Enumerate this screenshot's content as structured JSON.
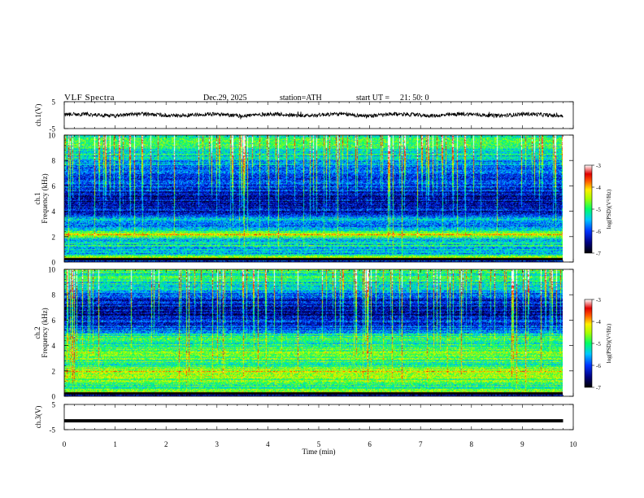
{
  "header": {
    "title": "VLF  Spectra",
    "date": "Dec.29, 2025",
    "station": "station=ATH",
    "start_label": "start  UT  =",
    "start_value": "21: 50: 0"
  },
  "chart_data": [
    {
      "type": "line",
      "name": "ch1-waveform",
      "ylabel": "ch.1(V)",
      "yticks": [
        "5",
        "-5"
      ],
      "ylim": [
        -5,
        5
      ],
      "xlim": [
        0,
        10
      ],
      "baseline": 0,
      "data_extent": [
        0,
        9.8
      ],
      "description_values": {
        "mean": 0.1,
        "noise_amplitude": 0.7
      }
    },
    {
      "type": "heatmap",
      "name": "ch1-spectrogram",
      "ylabel": "Frequency (kHz)",
      "channel_label": "ch.1",
      "yticks": [
        "0",
        "2",
        "4",
        "6",
        "8",
        "10"
      ],
      "ylim": [
        0,
        10
      ],
      "xlim": [
        0,
        9.8
      ],
      "colorbar": {
        "label": "log(PSD)(V²/Hz)",
        "ticks": [
          "-3",
          "-4",
          "-5",
          "-6",
          "-7"
        ],
        "range": [
          -7,
          -3
        ]
      },
      "profile": [
        {
          "f": 0.0,
          "v": -7.0
        },
        {
          "f": 0.3,
          "v": -4.6
        },
        {
          "f": 0.8,
          "v": -5.6
        },
        {
          "f": 1.3,
          "v": -5.2
        },
        {
          "f": 1.8,
          "v": -5.6
        },
        {
          "f": 2.2,
          "v": -4.1
        },
        {
          "f": 2.8,
          "v": -6.0
        },
        {
          "f": 3.4,
          "v": -5.4
        },
        {
          "f": 4.0,
          "v": -6.3
        },
        {
          "f": 5.0,
          "v": -6.4
        },
        {
          "f": 6.2,
          "v": -6.0
        },
        {
          "f": 7.2,
          "v": -5.9
        },
        {
          "f": 8.3,
          "v": -5.3
        },
        {
          "f": 9.2,
          "v": -5.0
        },
        {
          "f": 10.0,
          "v": -5.0
        }
      ]
    },
    {
      "type": "heatmap",
      "name": "ch2-spectrogram",
      "ylabel": "Frequency (kHz)",
      "channel_label": "ch.2",
      "yticks": [
        "0",
        "2",
        "4",
        "6",
        "8",
        "10"
      ],
      "ylim": [
        0,
        10
      ],
      "xlim": [
        0,
        9.8
      ],
      "colorbar": {
        "label": "log(PSD)(V²/Hz)",
        "ticks": [
          "-3",
          "-4",
          "-5",
          "-6",
          "-7"
        ],
        "range": [
          -7,
          -3
        ]
      },
      "profile": [
        {
          "f": 0.0,
          "v": -7.0
        },
        {
          "f": 0.3,
          "v": -4.6
        },
        {
          "f": 1.0,
          "v": -5.0
        },
        {
          "f": 1.9,
          "v": -4.2
        },
        {
          "f": 2.5,
          "v": -5.0
        },
        {
          "f": 3.3,
          "v": -4.6
        },
        {
          "f": 4.0,
          "v": -5.2
        },
        {
          "f": 4.6,
          "v": -4.8
        },
        {
          "f": 5.3,
          "v": -5.9
        },
        {
          "f": 6.5,
          "v": -6.5
        },
        {
          "f": 7.5,
          "v": -6.2
        },
        {
          "f": 8.5,
          "v": -5.5
        },
        {
          "f": 9.3,
          "v": -5.1
        },
        {
          "f": 10.0,
          "v": -5.0
        }
      ]
    },
    {
      "type": "line",
      "name": "ch3-waveform",
      "ylabel": "ch.3(V)",
      "yticks": [
        "5",
        "-5"
      ],
      "ylim": [
        -5,
        5
      ],
      "xlim": [
        0,
        10
      ],
      "baseline": -1.5,
      "data_extent": [
        0,
        9.8
      ],
      "xlabel": "Time  (min)",
      "xticks": [
        "0",
        "1",
        "2",
        "3",
        "4",
        "5",
        "6",
        "7",
        "8",
        "9",
        "10"
      ]
    }
  ],
  "colors": {
    "axis": "#000000",
    "background": "#ffffff",
    "trace": "#000000"
  }
}
